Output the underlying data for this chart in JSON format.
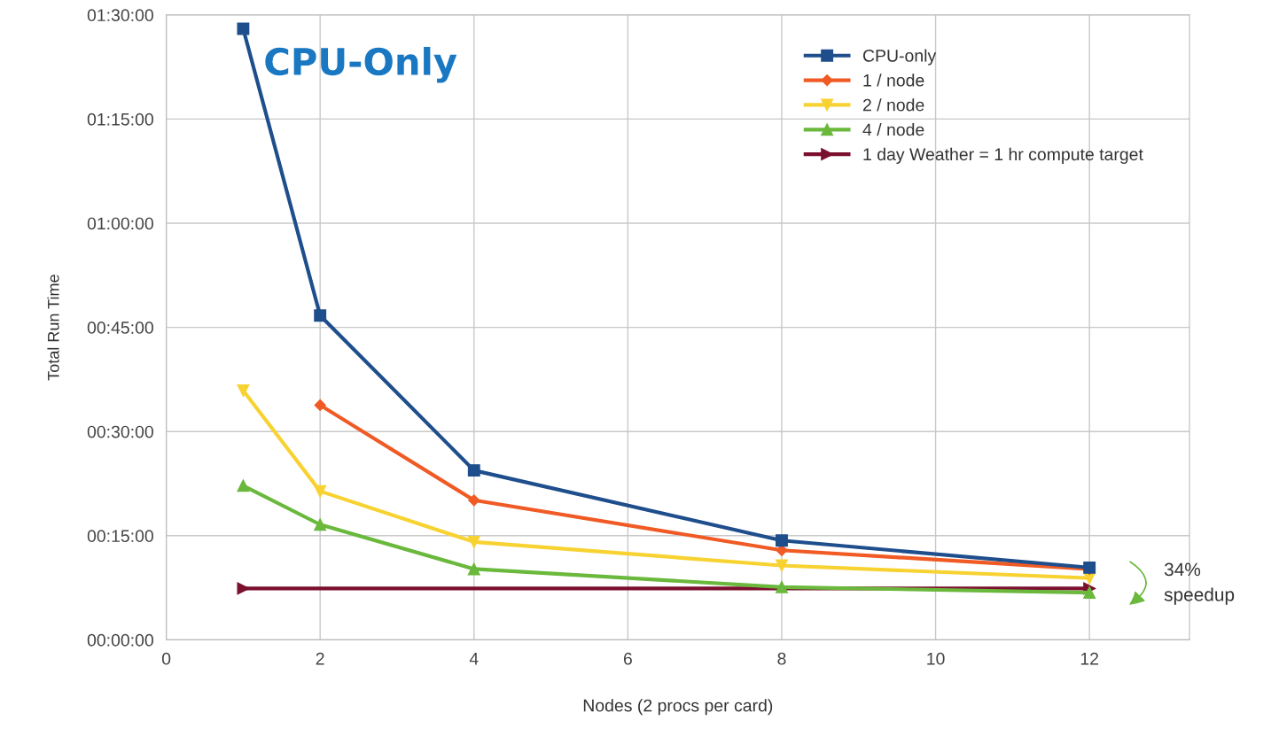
{
  "chart_data": {
    "type": "line",
    "xlabel": "Nodes (2 procs per card)",
    "ylabel": "Total Run Time",
    "xlim": [
      0,
      13.3
    ],
    "xticks": [
      0,
      2,
      4,
      6,
      8,
      10,
      12
    ],
    "ylim": [
      0,
      90
    ],
    "yticks": [
      {
        "value": 0,
        "label": "00:00:00"
      },
      {
        "value": 15,
        "label": "00:15:00"
      },
      {
        "value": 30,
        "label": "00:30:00"
      },
      {
        "value": 45,
        "label": "00:45:00"
      },
      {
        "value": 60,
        "label": "01:00:00"
      },
      {
        "value": 75,
        "label": "01:15:00"
      },
      {
        "value": 90,
        "label": "01:30:00"
      }
    ],
    "grid": true,
    "legend": "top right",
    "line_style": "solid",
    "series": [
      {
        "name": "CPU-only",
        "color": "#1f4e8c",
        "marker": "square",
        "x": [
          1,
          2,
          4,
          8,
          12
        ],
        "values": [
          88.0,
          46.7,
          24.4,
          14.3,
          10.4
        ]
      },
      {
        "name": "1 / node",
        "color": "#f05a24",
        "marker": "diamond",
        "x": [
          2,
          4,
          8,
          12
        ],
        "values": [
          33.8,
          20.1,
          12.9,
          10.2
        ]
      },
      {
        "name": "2 / node",
        "color": "#f7d230",
        "marker": "triangle_down",
        "x": [
          1,
          2,
          4,
          8,
          12
        ],
        "values": [
          35.9,
          21.4,
          14.1,
          10.7,
          8.9
        ]
      },
      {
        "name": "4 / node",
        "color": "#6ab83c",
        "marker": "triangle",
        "x": [
          1,
          2,
          4,
          8,
          12
        ],
        "values": [
          22.2,
          16.6,
          10.2,
          7.6,
          6.8
        ]
      },
      {
        "name": "1 day Weather = 1 hr compute target",
        "color": "#7b0f2e",
        "marker": "triangle_right",
        "x": [
          1,
          12
        ],
        "values": [
          7.4,
          7.4
        ]
      }
    ],
    "annotations": [
      "CPU-Only",
      "34%\nspeedup"
    ]
  }
}
